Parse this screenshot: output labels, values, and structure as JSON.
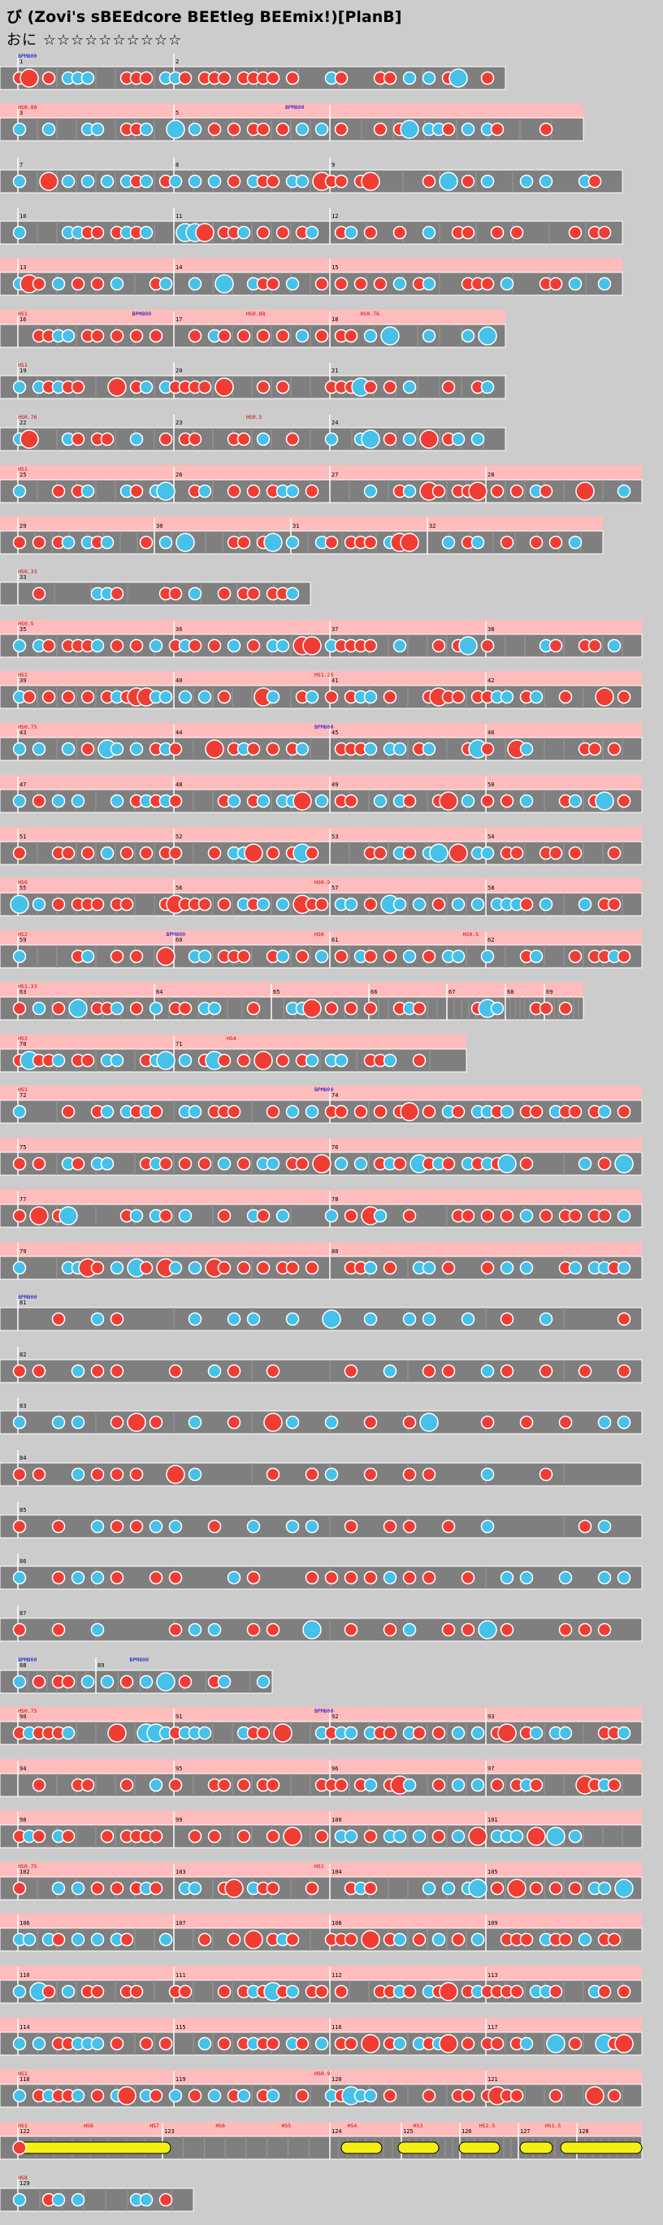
{
  "header": {
    "title": "び (Zovi's sBEEdcore BEEtleg BEEmix!)[PlanB]",
    "course": "おに",
    "level": "☆☆☆☆☆☆☆☆☆☆"
  },
  "colors": {
    "background": "#cccccc",
    "lane": "#7f7f7f",
    "lane_border": "#ffffff",
    "gogo": "#ffbcbc",
    "don": "#ef3d34",
    "ka": "#45c1ea",
    "drumroll": "#f5f011",
    "barline": "#ffffff",
    "bpm_text": "#0000cc",
    "hs_text": "#cc0000"
  },
  "rows": [
    {
      "measures": [
        "1",
        "2"
      ],
      "labels": [
        "BPM800"
      ]
    },
    {
      "measures": [
        "3",
        "5"
      ],
      "labels": [
        "HS0.88",
        "BPM800"
      ]
    },
    {
      "measures": [
        "7",
        "8",
        "9"
      ],
      "labels": []
    },
    {
      "measures": [
        "10",
        "11",
        "12"
      ],
      "labels": []
    },
    {
      "measures": [
        "13",
        "14",
        "15"
      ],
      "labels": []
    },
    {
      "measures": [
        "16",
        "17",
        "18"
      ],
      "labels": [
        "HS1",
        "BPM800",
        "HS0.88",
        "HS0.76"
      ]
    },
    {
      "measures": [
        "19",
        "20",
        "21"
      ],
      "labels": [
        "HS1"
      ]
    },
    {
      "measures": [
        "22",
        "23",
        "24"
      ],
      "labels": [
        "HS0.76",
        "HS0.5"
      ]
    },
    {
      "measures": [
        "25",
        "26",
        "27",
        "28"
      ],
      "labels": [
        "HS1"
      ]
    },
    {
      "measures": [
        "29",
        "30",
        "31",
        "32"
      ],
      "labels": []
    },
    {
      "measures": [
        "33"
      ],
      "labels": [
        "HS0.33"
      ]
    },
    {
      "measures": [
        "35",
        "36",
        "37",
        "38"
      ],
      "labels": [
        "HS0.5"
      ]
    },
    {
      "measures": [
        "39",
        "40",
        "41",
        "42"
      ],
      "labels": [
        "HS1",
        "HS1.25"
      ]
    },
    {
      "measures": [
        "43",
        "44",
        "45",
        "46"
      ],
      "labels": [
        "HS0.75",
        "BPM800"
      ]
    },
    {
      "measures": [
        "47",
        "48",
        "49",
        "50"
      ],
      "labels": []
    },
    {
      "measures": [
        "51",
        "52",
        "53",
        "54"
      ],
      "labels": []
    },
    {
      "measures": [
        "55",
        "56",
        "57",
        "58"
      ],
      "labels": [
        "HS0",
        "HS0.9"
      ]
    },
    {
      "measures": [
        "59",
        "60",
        "61",
        "62"
      ],
      "labels": [
        "HS2",
        "BPM800",
        "HS0",
        "HS0.5"
      ]
    },
    {
      "measures": [
        "63",
        "64",
        "65",
        "66",
        "67",
        "68",
        "69"
      ],
      "labels": [
        "HS1.33"
      ]
    },
    {
      "measures": [
        "70",
        "71"
      ],
      "labels": [
        "HS3",
        "HS4"
      ]
    },
    {
      "measures": [
        "72",
        "74"
      ],
      "labels": [
        "HS1",
        "BPM800"
      ]
    },
    {
      "measures": [
        "75",
        "76"
      ],
      "labels": []
    },
    {
      "measures": [
        "77",
        "78"
      ],
      "labels": []
    },
    {
      "measures": [
        "79",
        "80"
      ],
      "labels": []
    },
    {
      "measures": [
        "81"
      ],
      "labels": [
        "BPM800"
      ]
    },
    {
      "measures": [
        "82"
      ],
      "labels": []
    },
    {
      "measures": [
        "83"
      ],
      "labels": []
    },
    {
      "measures": [
        "84"
      ],
      "labels": []
    },
    {
      "measures": [
        "85"
      ],
      "labels": []
    },
    {
      "measures": [
        "86"
      ],
      "labels": []
    },
    {
      "measures": [
        "87"
      ],
      "labels": []
    },
    {
      "measures": [
        "88",
        "89"
      ],
      "labels": [
        "BPM800",
        "BPM800"
      ]
    },
    {
      "measures": [
        "90",
        "91",
        "92",
        "93"
      ],
      "labels": [
        "HS0.75",
        "BPM800"
      ]
    },
    {
      "measures": [
        "94",
        "95",
        "96",
        "97"
      ],
      "labels": []
    },
    {
      "measures": [
        "98",
        "99",
        "100",
        "101"
      ],
      "labels": []
    },
    {
      "measures": [
        "102",
        "103",
        "104",
        "105"
      ],
      "labels": [
        "HS0.75",
        "HS1"
      ]
    },
    {
      "measures": [
        "106",
        "107",
        "108",
        "109"
      ],
      "labels": []
    },
    {
      "measures": [
        "110",
        "111",
        "112",
        "113"
      ],
      "labels": []
    },
    {
      "measures": [
        "114",
        "115",
        "116",
        "117"
      ],
      "labels": []
    },
    {
      "measures": [
        "118",
        "119",
        "120",
        "121"
      ],
      "labels": [
        "HS1",
        "HS0.9"
      ]
    },
    {
      "measures": [
        "122",
        "123",
        "124",
        "125",
        "126",
        "127",
        "128"
      ],
      "labels": [
        "HS1",
        "HS8",
        "HS7",
        "HS6",
        "HS5",
        "HS4",
        "HS3",
        "HS2.5",
        "HS1.5"
      ]
    },
    {
      "measures": [
        "129"
      ],
      "labels": [
        "HS8"
      ]
    }
  ]
}
